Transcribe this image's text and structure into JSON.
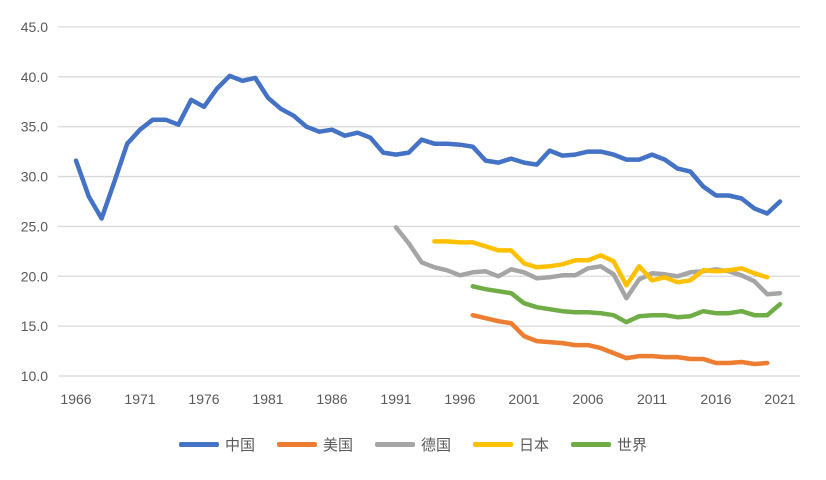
{
  "chart_data": {
    "type": "line",
    "title": "",
    "xlabel": "",
    "ylabel": "",
    "ylim": [
      10,
      45
    ],
    "xlim": [
      1966,
      2021
    ],
    "y_ticks": [
      "10.0",
      "15.0",
      "20.0",
      "25.0",
      "30.0",
      "35.0",
      "40.0",
      "45.0"
    ],
    "x_ticks": [
      "1966",
      "1971",
      "1976",
      "1981",
      "1986",
      "1991",
      "1996",
      "2001",
      "2006",
      "2011",
      "2016",
      "2021"
    ],
    "grid": "horizontal",
    "legend_position": "bottom",
    "series": [
      {
        "name": "中国",
        "color": "#4472C4",
        "start": 1966,
        "values": [
          31.6,
          28.0,
          25.8,
          29.5,
          33.3,
          34.7,
          35.7,
          35.7,
          35.2,
          37.7,
          37.0,
          38.8,
          40.1,
          39.6,
          39.9,
          37.9,
          36.8,
          36.1,
          35.0,
          34.5,
          34.7,
          34.1,
          34.4,
          33.9,
          32.4,
          32.2,
          32.4,
          33.7,
          33.3,
          33.3,
          33.2,
          33.0,
          31.6,
          31.4,
          31.8,
          31.4,
          31.2,
          32.6,
          32.1,
          32.2,
          32.5,
          32.5,
          32.2,
          31.7,
          31.7,
          32.2,
          31.7,
          30.8,
          30.5,
          29.0,
          28.1,
          28.1,
          27.8,
          26.8,
          26.3,
          27.5
        ]
      },
      {
        "name": "美国",
        "color": "#ED7D31",
        "start": 1997,
        "values": [
          16.1,
          15.8,
          15.5,
          15.3,
          14.0,
          13.5,
          13.4,
          13.3,
          13.1,
          13.1,
          12.8,
          12.3,
          11.8,
          12.0,
          12.0,
          11.9,
          11.9,
          11.7,
          11.7,
          11.3,
          11.3,
          11.4,
          11.2,
          11.3
        ]
      },
      {
        "name": "德国",
        "color": "#A5A5A5",
        "start": 1991,
        "values": [
          24.9,
          23.3,
          21.4,
          20.9,
          20.6,
          20.1,
          20.4,
          20.5,
          20.0,
          20.7,
          20.4,
          19.8,
          19.9,
          20.1,
          20.1,
          20.8,
          21.0,
          20.2,
          17.8,
          19.7,
          20.3,
          20.2,
          20.0,
          20.4,
          20.5,
          20.7,
          20.5,
          20.1,
          19.5,
          18.2,
          18.3
        ]
      },
      {
        "name": "日本",
        "color": "#FFC000",
        "start": 1994,
        "values": [
          23.5,
          23.5,
          23.4,
          23.4,
          23.0,
          22.6,
          22.6,
          21.3,
          20.9,
          21.0,
          21.2,
          21.6,
          21.6,
          22.1,
          21.5,
          19.1,
          21.0,
          19.6,
          19.9,
          19.4,
          19.6,
          20.6,
          20.5,
          20.6,
          20.8,
          20.3,
          19.9
        ]
      },
      {
        "name": "世界",
        "color": "#70AD47",
        "start": 1997,
        "values": [
          19.0,
          18.7,
          18.5,
          18.3,
          17.3,
          16.9,
          16.7,
          16.5,
          16.4,
          16.4,
          16.3,
          16.1,
          15.4,
          16.0,
          16.1,
          16.1,
          15.9,
          16.0,
          16.5,
          16.3,
          16.3,
          16.5,
          16.1,
          16.1,
          17.2
        ]
      }
    ]
  }
}
